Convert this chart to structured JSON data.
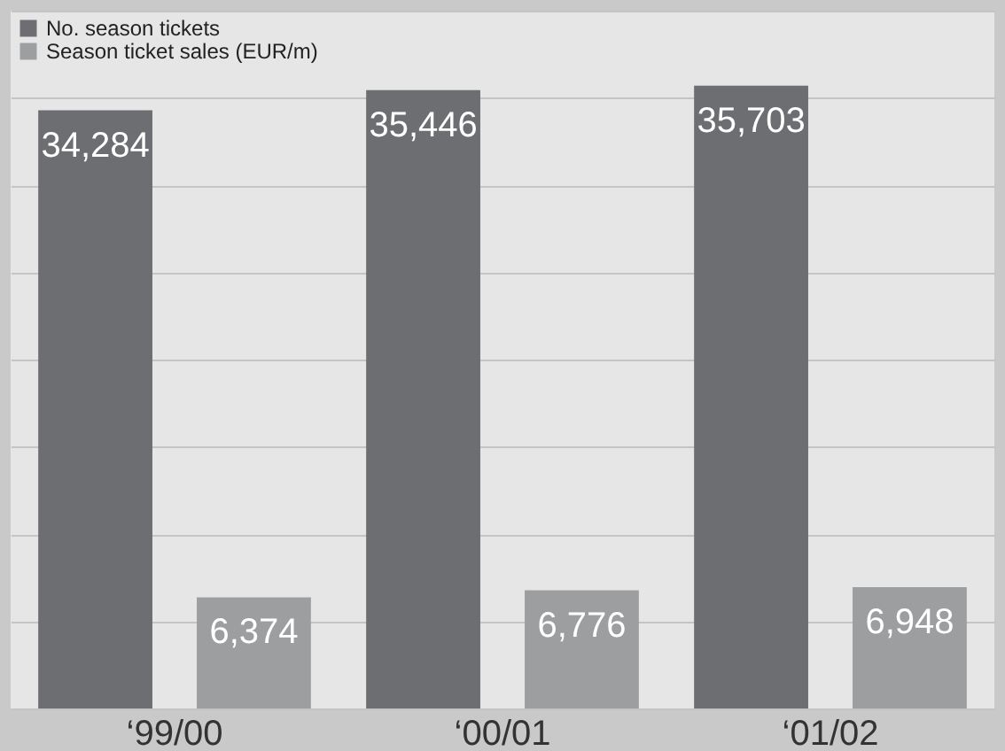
{
  "chart_data": {
    "type": "bar",
    "categories": [
      "‘99/00",
      "‘00/01",
      "‘01/02"
    ],
    "series": [
      {
        "name": "No. season tickets",
        "color": "#6d6e71",
        "values": [
          34284,
          35446,
          35703
        ],
        "value_labels": [
          "34,284",
          "35,446",
          "35,703"
        ]
      },
      {
        "name": "Season ticket sales (EUR/m)",
        "color": "#9d9ea0",
        "values": [
          6374,
          6776,
          6948
        ],
        "value_labels": [
          "6,374",
          "6,776",
          "6,948"
        ]
      }
    ],
    "grid": "y",
    "legend": "top left",
    "tick_labels": "x"
  }
}
